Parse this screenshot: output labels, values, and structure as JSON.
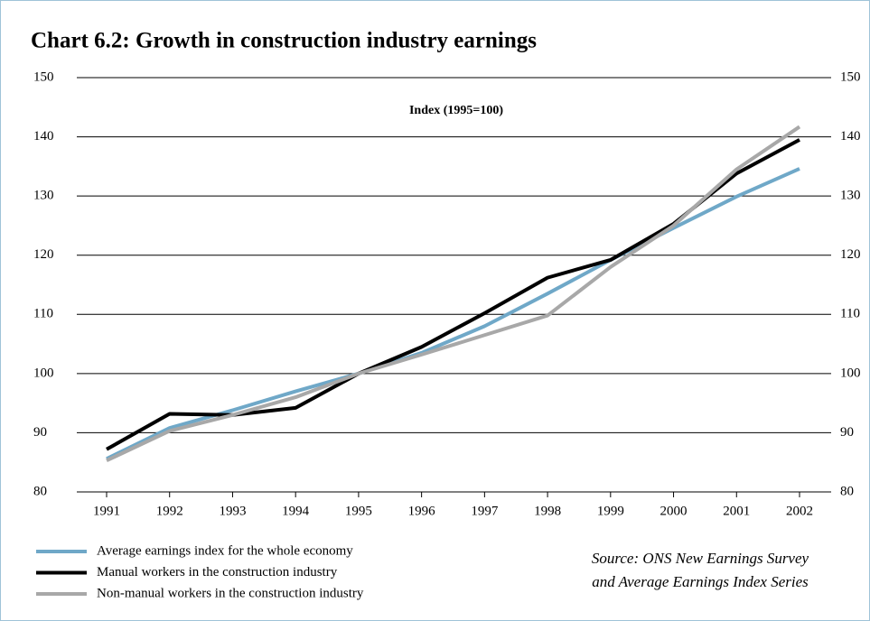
{
  "chart_data": {
    "type": "line",
    "title": "Chart 6.2: Growth in construction industry earnings",
    "subtitle": "Index (1995=100)",
    "categories": [
      "1991",
      "1992",
      "1993",
      "1994",
      "1995",
      "1996",
      "1997",
      "1998",
      "1999",
      "2000",
      "2001",
      "2002"
    ],
    "series": [
      {
        "name": "Average earnings index for the whole economy",
        "color": "#6fa8c8",
        "values": [
          85.6,
          90.8,
          93.8,
          97.0,
          100,
          103.5,
          108.0,
          113.5,
          119.2,
          124.6,
          129.9,
          134.6
        ]
      },
      {
        "name": "Manual workers in the construction industry",
        "color": "#000000",
        "values": [
          87.2,
          93.2,
          93.0,
          94.2,
          100,
          104.5,
          110.2,
          116.2,
          119.2,
          125.3,
          133.8,
          139.5
        ]
      },
      {
        "name": "Non-manual workers in the construction industry",
        "color": "#a8a8a8",
        "values": [
          85.3,
          90.3,
          93.0,
          96.0,
          100,
          103.2,
          106.5,
          109.8,
          118.0,
          125.0,
          134.5,
          141.7
        ]
      }
    ],
    "ylim": [
      80,
      150
    ],
    "yticks": [
      80,
      90,
      100,
      110,
      120,
      130,
      140,
      150
    ],
    "grid": true,
    "source": [
      "Source: ONS New Earnings Survey",
      "and Average Earnings Index Series"
    ]
  }
}
